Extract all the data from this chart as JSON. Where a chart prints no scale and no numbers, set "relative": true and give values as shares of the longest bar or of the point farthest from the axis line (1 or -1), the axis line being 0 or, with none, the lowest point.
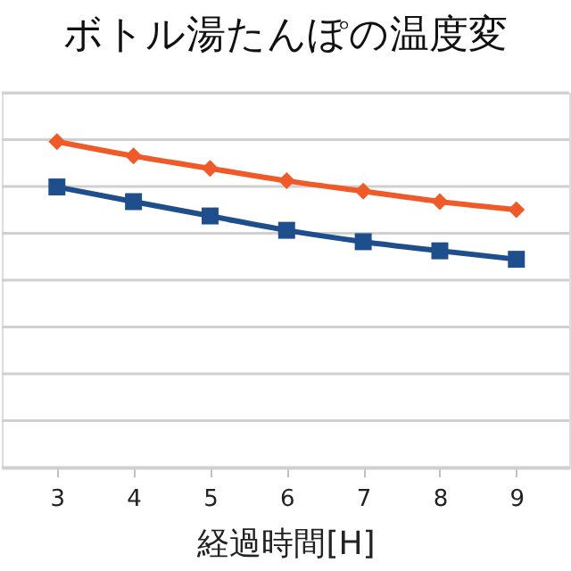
{
  "chart_data": {
    "type": "line",
    "title": "ボトル湯たんぽの温度変",
    "xlabel": "経過時間[H]",
    "x": [
      3,
      4,
      5,
      6,
      7,
      8,
      9
    ],
    "xlim": [
      2.28,
      9.69
    ],
    "xticks": [
      3,
      4,
      5,
      6,
      7,
      8,
      9
    ],
    "relative": true,
    "grid": "y",
    "line_style": "solid",
    "series": [
      {
        "color": "#f05a28",
        "marker": "diamond",
        "values": [
          1.0,
          0.956,
          0.918,
          0.88,
          0.848,
          0.816,
          0.791
        ]
      },
      {
        "color": "#1f4e8c",
        "marker": "square",
        "values": [
          0.861,
          0.816,
          0.772,
          0.728,
          0.693,
          0.665,
          0.639
        ]
      }
    ]
  }
}
